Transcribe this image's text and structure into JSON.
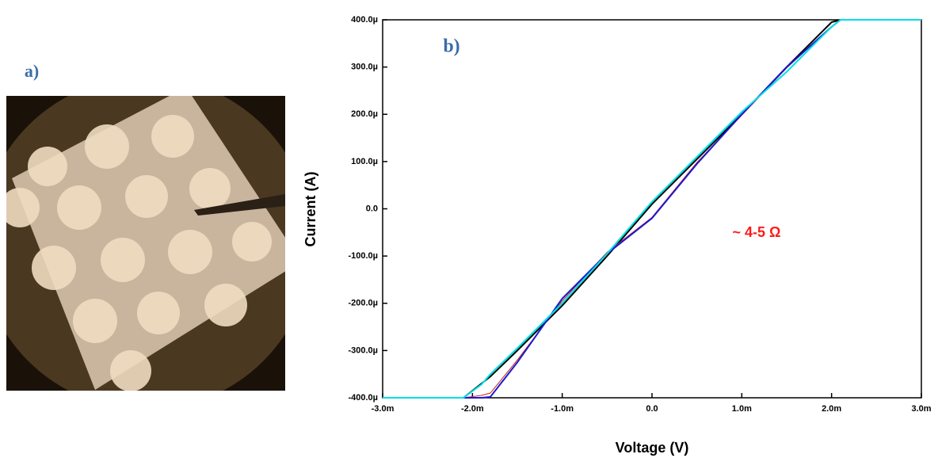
{
  "photo_label": "a)",
  "chart_data": {
    "type": "line",
    "panel_label": "b)",
    "annotation": "~ 4-5 Ω",
    "x_label": "Voltage (V)",
    "y_label": "Current (A)",
    "x": [
      -0.003,
      -0.0021,
      -0.0019,
      -0.0018,
      -0.0015,
      -0.001,
      -0.0005,
      0,
      0.0005,
      0.001,
      0.0015,
      0.002,
      0.0021,
      0.003
    ],
    "series": [
      {
        "color": "#000000",
        "values": [
          -0.0004,
          -0.0004,
          -0.00037,
          -0.000355,
          -0.0003,
          -0.000205,
          -0.0001,
          1e-05,
          0.000105,
          0.0002,
          0.0003,
          0.000395,
          0.0004,
          0.0004
        ]
      },
      {
        "color": "#d02020",
        "values": [
          -0.0004,
          -0.0004,
          -0.000395,
          -0.00039,
          -0.00032,
          -0.000195,
          -9.2e-05,
          -1.8e-05,
          9.8e-05,
          0.000198,
          0.000298,
          0.000385,
          0.0004,
          0.0004
        ]
      },
      {
        "color": "#1a1ad0",
        "values": [
          -0.0004,
          -0.0004,
          -0.0004,
          -0.000398,
          -0.000325,
          -0.00019,
          -9.5e-05,
          -2e-05,
          9.5e-05,
          0.0002,
          0.0003,
          0.000385,
          0.0004,
          0.0004
        ]
      },
      {
        "color": "#00e0e8",
        "values": [
          -0.0004,
          -0.0004,
          -0.000372,
          -0.00035,
          -0.000295,
          -0.0002,
          -9.5e-05,
          1.5e-05,
          0.00011,
          0.000205,
          0.00029,
          0.000385,
          0.0004,
          0.0004
        ]
      }
    ],
    "xlim": [
      -0.003,
      0.003
    ],
    "xticks": [
      {
        "value": -0.003,
        "label": "-3.0m"
      },
      {
        "value": -0.002,
        "label": "-2.0m"
      },
      {
        "value": -0.001,
        "label": "-1.0m"
      },
      {
        "value": 0,
        "label": "0.0"
      },
      {
        "value": 0.001,
        "label": "1.0m"
      },
      {
        "value": 0.002,
        "label": "2.0m"
      },
      {
        "value": 0.003,
        "label": "3.0m"
      }
    ],
    "ylim": [
      -0.0004,
      0.0004
    ],
    "yticks": [
      {
        "value": -0.0004,
        "label": "-400.0µ"
      },
      {
        "value": -0.0003,
        "label": "-300.0µ"
      },
      {
        "value": -0.0002,
        "label": "-200.0µ"
      },
      {
        "value": -0.0001,
        "label": "-100.0µ"
      },
      {
        "value": 0,
        "label": "0.0"
      },
      {
        "value": 0.0001,
        "label": "100.0µ"
      },
      {
        "value": 0.0002,
        "label": "200.0µ"
      },
      {
        "value": 0.0003,
        "label": "300.0µ"
      },
      {
        "value": 0.0004,
        "label": "400.0µ"
      }
    ]
  }
}
